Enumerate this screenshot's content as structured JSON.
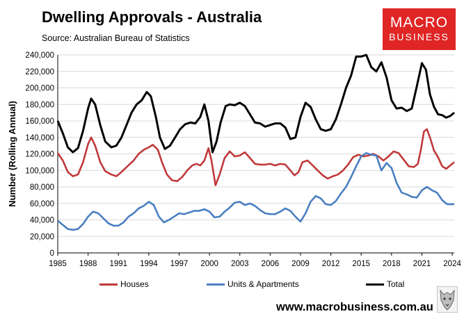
{
  "header": {
    "title": "Dwelling Approvals - Australia",
    "source": "Source: Australian Bureau of Statistics"
  },
  "logo": {
    "line1": "MACRO",
    "line2": "BUSINESS"
  },
  "footer": {
    "url": "www.macrobusiness.com.au"
  },
  "colors": {
    "houses": "#c0393b",
    "units": "#4a7fc1",
    "total": "#000000",
    "brand": "#e02525"
  },
  "icons": {
    "emblem": "wolf-head-icon"
  },
  "chart_data": {
    "type": "line",
    "title": "Dwelling Approvals - Australia",
    "ylabel": "Number (Rolling Annual)",
    "xlabel": "",
    "xlim": [
      1985,
      2024.2
    ],
    "ylim": [
      0,
      240000
    ],
    "x_ticks": [
      1985,
      1988,
      1991,
      1994,
      1997,
      2000,
      2003,
      2006,
      2009,
      2012,
      2015,
      2018,
      2021,
      2024
    ],
    "x_tick_labels": [
      "1985",
      "1988",
      "1991",
      "1994",
      "1997",
      "2000",
      "2003",
      "2006",
      "2009",
      "2012",
      "2015",
      "2018",
      "2021",
      "2024"
    ],
    "y_ticks": [
      0,
      20000,
      40000,
      60000,
      80000,
      100000,
      120000,
      140000,
      160000,
      180000,
      200000,
      220000,
      240000
    ],
    "y_tick_labels": [
      "0",
      "20,000",
      "40,000",
      "60,000",
      "80,000",
      "100,000",
      "120,000",
      "140,000",
      "160,000",
      "180,000",
      "200,000",
      "220,000",
      "240,000"
    ],
    "grid": "horizontal",
    "legend": "bottom",
    "series": [
      {
        "name": "Houses",
        "color": "#c0393b",
        "x": [
          1985,
          1985.5,
          1986,
          1986.5,
          1987,
          1987.5,
          1988,
          1988.3,
          1988.7,
          1989.2,
          1989.7,
          1990.3,
          1990.8,
          1991.3,
          1991.8,
          1992.5,
          1993,
          1993.5,
          1994,
          1994.4,
          1994.9,
          1995.3,
          1995.8,
          1996.3,
          1996.8,
          1997.3,
          1997.8,
          1998.3,
          1998.7,
          1999.1,
          1999.5,
          1999.9,
          2000.2,
          2000.6,
          2001,
          2001.5,
          2002,
          2002.5,
          2003,
          2003.5,
          2004,
          2004.5,
          2005,
          2005.5,
          2006,
          2006.5,
          2007,
          2007.5,
          2008,
          2008.4,
          2008.8,
          2009.2,
          2009.7,
          2010.2,
          2010.7,
          2011.2,
          2011.7,
          2012.2,
          2012.7,
          2013.2,
          2013.7,
          2014.2,
          2014.7,
          2015.2,
          2015.7,
          2016.2,
          2016.7,
          2017.2,
          2017.7,
          2018.2,
          2018.7,
          2019.2,
          2019.7,
          2020.2,
          2020.6,
          2020.9,
          2021.2,
          2021.5,
          2021.8,
          2022.2,
          2022.6,
          2023,
          2023.4,
          2023.8,
          2024.2
        ],
        "y": [
          121000,
          112000,
          98000,
          93000,
          95000,
          110000,
          132000,
          140000,
          130000,
          110000,
          99000,
          95000,
          93000,
          98000,
          104000,
          112000,
          120000,
          125000,
          128000,
          131000,
          125000,
          110000,
          95000,
          88000,
          87000,
          92000,
          100000,
          106000,
          108000,
          106000,
          112000,
          127000,
          112000,
          82000,
          95000,
          115000,
          123000,
          117000,
          118000,
          122000,
          115000,
          108000,
          107000,
          107000,
          108000,
          106000,
          108000,
          107000,
          100000,
          94000,
          98000,
          110000,
          112000,
          106000,
          100000,
          94000,
          90000,
          93000,
          95000,
          100000,
          107000,
          116000,
          119000,
          117000,
          118000,
          120000,
          117000,
          112000,
          117000,
          123000,
          121000,
          113000,
          105000,
          104000,
          108000,
          125000,
          147000,
          150000,
          140000,
          124000,
          116000,
          105000,
          102000,
          106000,
          110000
        ]
      },
      {
        "name": "Units & Apartments",
        "color": "#4a7fc1",
        "x": [
          1985,
          1985.5,
          1986,
          1986.5,
          1987,
          1987.5,
          1988,
          1988.5,
          1989,
          1989.5,
          1990,
          1990.5,
          1991,
          1991.5,
          1992,
          1992.5,
          1993,
          1993.5,
          1994,
          1994.5,
          1995,
          1995.5,
          1996,
          1996.5,
          1997,
          1997.5,
          1998,
          1998.5,
          1999,
          1999.5,
          2000,
          2000.5,
          2001,
          2001.5,
          2002,
          2002.5,
          2003,
          2003.5,
          2004,
          2004.5,
          2005,
          2005.5,
          2006,
          2006.5,
          2007,
          2007.5,
          2008,
          2008.5,
          2009,
          2009.5,
          2010,
          2010.5,
          2011,
          2011.5,
          2012,
          2012.5,
          2013,
          2013.5,
          2014,
          2014.5,
          2015,
          2015.5,
          2016,
          2016.5,
          2017,
          2017.5,
          2018,
          2018.5,
          2019,
          2019.5,
          2020,
          2020.5,
          2021,
          2021.5,
          2022,
          2022.5,
          2023,
          2023.5,
          2024.2
        ],
        "y": [
          39000,
          34000,
          29000,
          28000,
          29000,
          35000,
          44000,
          50000,
          48000,
          42000,
          36000,
          33000,
          33000,
          37000,
          44000,
          48000,
          54000,
          57000,
          62000,
          58000,
          44000,
          37000,
          40000,
          44000,
          48000,
          47000,
          49000,
          51000,
          51000,
          53000,
          50000,
          43000,
          44000,
          50000,
          55000,
          61000,
          62000,
          58000,
          60000,
          57000,
          52000,
          48000,
          47000,
          47000,
          50000,
          54000,
          51000,
          44000,
          38000,
          48000,
          62000,
          69000,
          66000,
          59000,
          58000,
          63000,
          72000,
          80000,
          92000,
          105000,
          117000,
          121000,
          119000,
          118000,
          100000,
          109000,
          103000,
          85000,
          73000,
          71000,
          68000,
          67000,
          76000,
          80000,
          76000,
          73000,
          64000,
          59000,
          59000
        ]
      },
      {
        "name": "Total",
        "color": "#000000",
        "x": [
          1985,
          1985.5,
          1986,
          1986.5,
          1987,
          1987.5,
          1988,
          1988.3,
          1988.7,
          1989.2,
          1989.7,
          1990.3,
          1990.8,
          1991.3,
          1991.8,
          1992.3,
          1992.8,
          1993.3,
          1993.8,
          1994.2,
          1994.7,
          1995.1,
          1995.6,
          1996.1,
          1996.6,
          1997.1,
          1997.6,
          1998.1,
          1998.6,
          1999.1,
          1999.5,
          1999.9,
          2000.3,
          2000.7,
          2001.1,
          2001.6,
          2002,
          2002.5,
          2003,
          2003.5,
          2004,
          2004.5,
          2005,
          2005.5,
          2006,
          2006.5,
          2007,
          2007.5,
          2008,
          2008.5,
          2009,
          2009.5,
          2010,
          2010.5,
          2011,
          2011.5,
          2012,
          2012.5,
          2013,
          2013.5,
          2014,
          2014.5,
          2015,
          2015.5,
          2016,
          2016.5,
          2017,
          2017.5,
          2018,
          2018.5,
          2019,
          2019.5,
          2020,
          2020.5,
          2021,
          2021.4,
          2021.8,
          2022.2,
          2022.6,
          2023,
          2023.4,
          2023.8,
          2024.2
        ],
        "y": [
          160000,
          145000,
          128000,
          122000,
          127000,
          148000,
          175000,
          187000,
          180000,
          155000,
          135000,
          128000,
          130000,
          140000,
          155000,
          170000,
          180000,
          185000,
          195000,
          190000,
          165000,
          140000,
          126000,
          130000,
          140000,
          150000,
          156000,
          158000,
          157000,
          165000,
          180000,
          160000,
          122000,
          135000,
          158000,
          178000,
          180000,
          179000,
          182000,
          178000,
          168000,
          158000,
          157000,
          153000,
          155000,
          157000,
          157000,
          152000,
          138000,
          140000,
          165000,
          182000,
          177000,
          162000,
          150000,
          148000,
          150000,
          162000,
          180000,
          200000,
          215000,
          238000,
          238000,
          240000,
          225000,
          220000,
          231000,
          213000,
          185000,
          175000,
          176000,
          172000,
          175000,
          202000,
          230000,
          222000,
          192000,
          177000,
          168000,
          167000,
          164000,
          166000,
          170000
        ]
      }
    ]
  }
}
